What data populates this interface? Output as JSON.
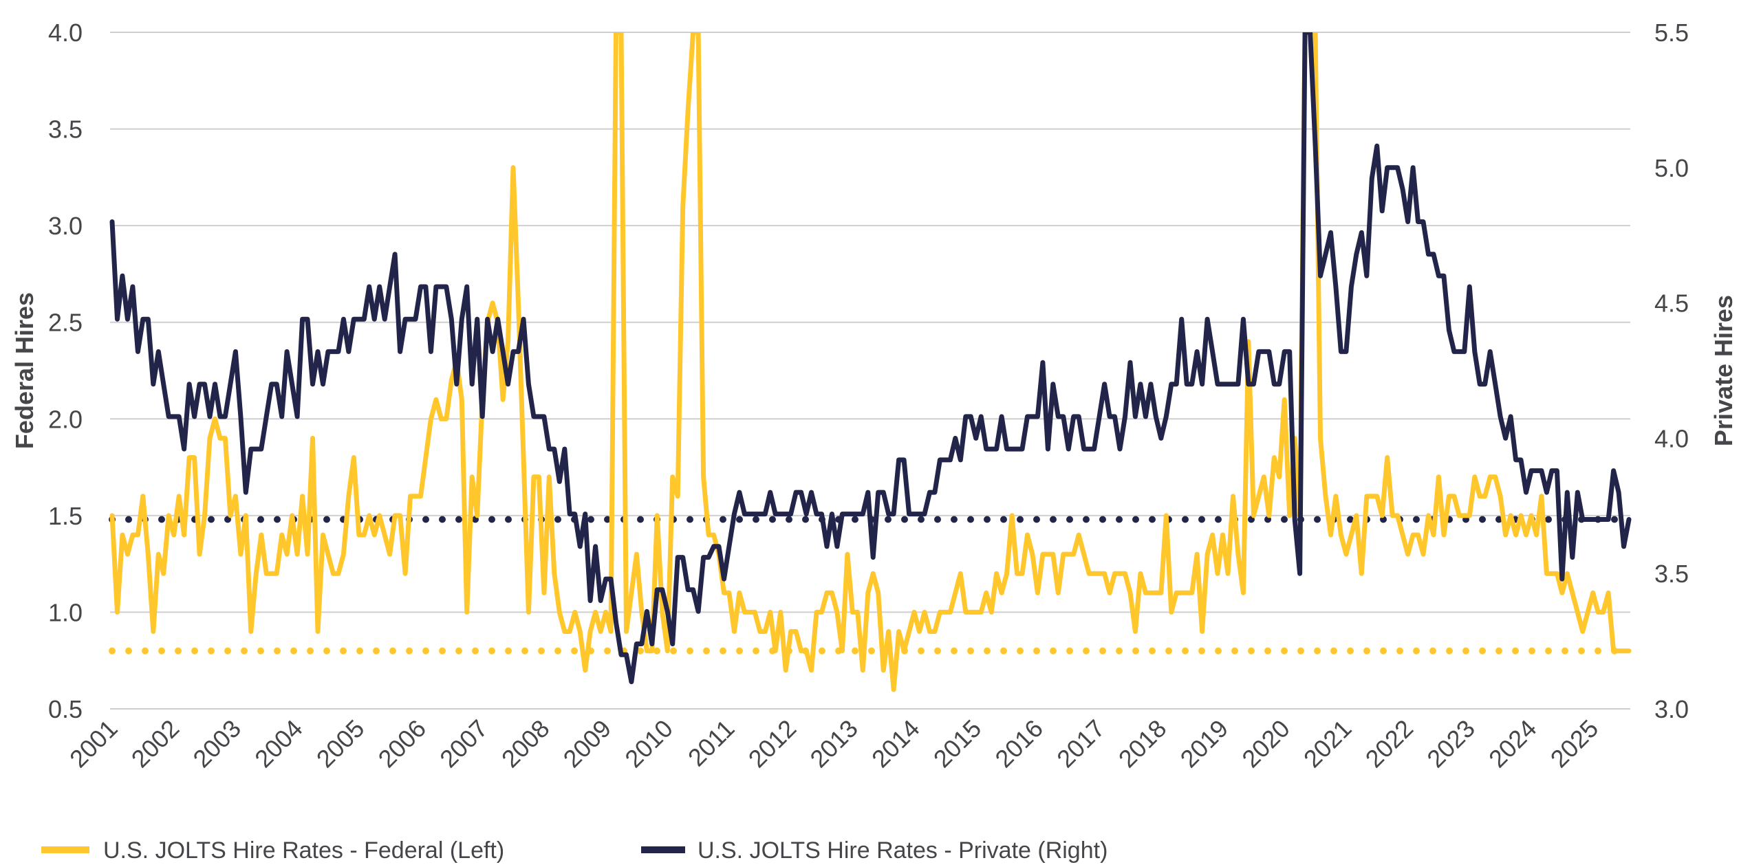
{
  "chart_data": {
    "type": "line",
    "title": "",
    "xlabel": "",
    "ylabel_left": "Federal Hires",
    "ylabel_right": "Private Hires",
    "ylim_left": [
      0.5,
      4.0
    ],
    "ylim_right": [
      3.0,
      5.5
    ],
    "yticks_left": [
      "0.5",
      "1.0",
      "1.5",
      "2.0",
      "2.5",
      "3.0",
      "3.5",
      "4.0"
    ],
    "yticks_right": [
      "3.0",
      "3.5",
      "4.0",
      "4.5",
      "5.0",
      "5.5"
    ],
    "xticks": [
      "2001",
      "2002",
      "2003",
      "2004",
      "2005",
      "2006",
      "2007",
      "2008",
      "2009",
      "2010",
      "2011",
      "2012",
      "2013",
      "2014",
      "2015",
      "2016",
      "2017",
      "2018",
      "2019",
      "2020",
      "2021",
      "2022",
      "2023",
      "2024",
      "2025"
    ],
    "x_start": "2001-01",
    "x_end": "2025-08",
    "frequency": "monthly",
    "grid": true,
    "legend_position": "bottom-left",
    "colors": {
      "federal": "#FFC72C",
      "private": "#22244A",
      "grid": "#CFCFCF",
      "text": "#45454A"
    },
    "reference_lines": [
      {
        "name": "Federal reference",
        "axis": "left",
        "value": 0.8,
        "style": "dotted",
        "color": "#FFC72C"
      },
      {
        "name": "Private reference",
        "axis": "right",
        "value": 3.7,
        "style": "dotted",
        "color": "#22244A"
      }
    ],
    "series": [
      {
        "name": "U.S. JOLTS Hire Rates - Federal (Left)",
        "axis": "left",
        "color": "#FFC72C",
        "values": [
          1.5,
          1.0,
          1.4,
          1.3,
          1.4,
          1.4,
          1.6,
          1.3,
          0.9,
          1.3,
          1.2,
          1.5,
          1.4,
          1.6,
          1.4,
          1.8,
          1.8,
          1.3,
          1.5,
          1.9,
          2.0,
          1.9,
          1.9,
          1.5,
          1.6,
          1.3,
          1.5,
          0.9,
          1.2,
          1.4,
          1.2,
          1.2,
          1.2,
          1.4,
          1.3,
          1.5,
          1.3,
          1.6,
          1.3,
          1.9,
          0.9,
          1.4,
          1.3,
          1.2,
          1.2,
          1.3,
          1.6,
          1.8,
          1.4,
          1.4,
          1.5,
          1.4,
          1.5,
          1.4,
          1.3,
          1.5,
          1.5,
          1.2,
          1.6,
          1.6,
          1.6,
          1.8,
          2.0,
          2.1,
          2.0,
          2.0,
          2.2,
          2.3,
          2.1,
          1.0,
          1.7,
          1.5,
          2.1,
          2.5,
          2.6,
          2.5,
          2.1,
          2.4,
          3.3,
          2.6,
          1.8,
          1.0,
          1.7,
          1.7,
          1.1,
          1.7,
          1.2,
          1.0,
          0.9,
          0.9,
          1.0,
          0.9,
          0.7,
          0.9,
          1.0,
          0.9,
          1.0,
          0.9,
          4.0,
          4.0,
          0.9,
          1.1,
          1.3,
          1.0,
          0.8,
          0.8,
          1.5,
          1.0,
          0.8,
          1.7,
          1.6,
          3.1,
          3.6,
          4.0,
          4.0,
          1.7,
          1.4,
          1.4,
          1.3,
          1.1,
          1.1,
          0.9,
          1.1,
          1.0,
          1.0,
          1.0,
          0.9,
          0.9,
          1.0,
          0.8,
          1.0,
          0.7,
          0.9,
          0.9,
          0.8,
          0.8,
          0.7,
          1.0,
          1.0,
          1.1,
          1.1,
          1.0,
          0.8,
          1.3,
          1.0,
          1.0,
          0.7,
          1.1,
          1.2,
          1.1,
          0.7,
          0.9,
          0.6,
          0.9,
          0.8,
          0.9,
          1.0,
          0.9,
          1.0,
          0.9,
          0.9,
          1.0,
          1.0,
          1.0,
          1.1,
          1.2,
          1.0,
          1.0,
          1.0,
          1.0,
          1.1,
          1.0,
          1.2,
          1.1,
          1.2,
          1.5,
          1.2,
          1.2,
          1.4,
          1.3,
          1.1,
          1.3,
          1.3,
          1.3,
          1.1,
          1.3,
          1.3,
          1.3,
          1.4,
          1.3,
          1.2,
          1.2,
          1.2,
          1.2,
          1.1,
          1.2,
          1.2,
          1.2,
          1.1,
          0.9,
          1.2,
          1.1,
          1.1,
          1.1,
          1.1,
          1.5,
          1.0,
          1.1,
          1.1,
          1.1,
          1.1,
          1.3,
          0.9,
          1.3,
          1.4,
          1.2,
          1.4,
          1.2,
          1.6,
          1.3,
          1.1,
          2.4,
          1.5,
          1.6,
          1.7,
          1.5,
          1.8,
          1.7,
          2.1,
          1.5,
          1.9,
          1.5,
          4.0,
          4.0,
          4.0,
          1.9,
          1.6,
          1.4,
          1.6,
          1.4,
          1.3,
          1.4,
          1.5,
          1.2,
          1.6,
          1.6,
          1.6,
          1.5,
          1.8,
          1.5,
          1.5,
          1.4,
          1.3,
          1.4,
          1.4,
          1.3,
          1.5,
          1.4,
          1.7,
          1.4,
          1.6,
          1.6,
          1.5,
          1.5,
          1.5,
          1.7,
          1.6,
          1.6,
          1.7,
          1.7,
          1.6,
          1.4,
          1.5,
          1.4,
          1.5,
          1.4,
          1.5,
          1.4,
          1.6,
          1.2,
          1.2,
          1.2,
          1.1,
          1.2,
          1.1,
          1.0,
          0.9,
          1.0,
          1.1,
          1.0,
          1.0,
          1.1,
          0.8,
          0.8,
          0.8,
          0.8
        ]
      },
      {
        "name": "U.S. JOLTS Hire Rates - Private (Right)",
        "axis": "right",
        "color": "#22244A",
        "values": [
          4.8,
          4.44,
          4.6,
          4.44,
          4.56,
          4.32,
          4.44,
          4.44,
          4.2,
          4.32,
          4.2,
          4.08,
          4.08,
          4.08,
          3.96,
          4.2,
          4.08,
          4.2,
          4.2,
          4.08,
          4.2,
          4.08,
          4.08,
          4.2,
          4.32,
          4.08,
          3.8,
          3.96,
          3.96,
          3.96,
          4.08,
          4.2,
          4.2,
          4.08,
          4.32,
          4.2,
          4.08,
          4.44,
          4.44,
          4.2,
          4.32,
          4.2,
          4.32,
          4.32,
          4.32,
          4.44,
          4.32,
          4.44,
          4.44,
          4.44,
          4.56,
          4.44,
          4.56,
          4.44,
          4.56,
          4.68,
          4.32,
          4.44,
          4.44,
          4.44,
          4.56,
          4.56,
          4.32,
          4.56,
          4.56,
          4.56,
          4.44,
          4.2,
          4.44,
          4.56,
          4.2,
          4.44,
          4.08,
          4.44,
          4.32,
          4.44,
          4.32,
          4.2,
          4.32,
          4.32,
          4.44,
          4.2,
          4.08,
          4.08,
          4.08,
          3.96,
          3.96,
          3.84,
          3.96,
          3.72,
          3.72,
          3.6,
          3.72,
          3.4,
          3.6,
          3.4,
          3.48,
          3.48,
          3.32,
          3.2,
          3.2,
          3.1,
          3.24,
          3.24,
          3.36,
          3.24,
          3.44,
          3.44,
          3.36,
          3.24,
          3.56,
          3.56,
          3.44,
          3.44,
          3.36,
          3.56,
          3.56,
          3.6,
          3.6,
          3.48,
          3.6,
          3.72,
          3.8,
          3.72,
          3.72,
          3.72,
          3.72,
          3.72,
          3.8,
          3.72,
          3.72,
          3.72,
          3.72,
          3.8,
          3.8,
          3.72,
          3.8,
          3.72,
          3.72,
          3.6,
          3.72,
          3.6,
          3.72,
          3.72,
          3.72,
          3.72,
          3.72,
          3.8,
          3.56,
          3.8,
          3.8,
          3.72,
          3.72,
          3.92,
          3.92,
          3.72,
          3.72,
          3.72,
          3.72,
          3.8,
          3.8,
          3.92,
          3.92,
          3.92,
          4.0,
          3.92,
          4.08,
          4.08,
          4.0,
          4.08,
          3.96,
          3.96,
          3.96,
          4.08,
          3.96,
          3.96,
          3.96,
          3.96,
          4.08,
          4.08,
          4.08,
          4.28,
          3.96,
          4.2,
          4.08,
          4.08,
          3.96,
          4.08,
          4.08,
          3.96,
          3.96,
          3.96,
          4.08,
          4.2,
          4.08,
          4.08,
          3.96,
          4.08,
          4.28,
          4.08,
          4.2,
          4.08,
          4.2,
          4.08,
          4.0,
          4.08,
          4.2,
          4.2,
          4.44,
          4.2,
          4.2,
          4.32,
          4.2,
          4.44,
          4.32,
          4.2,
          4.2,
          4.2,
          4.2,
          4.2,
          4.44,
          4.2,
          4.2,
          4.32,
          4.32,
          4.32,
          4.2,
          4.2,
          4.32,
          4.32,
          3.7,
          3.5,
          5.5,
          5.5,
          5.08,
          4.6,
          4.68,
          4.76,
          4.56,
          4.32,
          4.32,
          4.56,
          4.68,
          4.76,
          4.6,
          4.96,
          5.08,
          4.84,
          5.0,
          5.0,
          5.0,
          4.92,
          4.8,
          5.0,
          4.8,
          4.8,
          4.68,
          4.68,
          4.6,
          4.6,
          4.4,
          4.32,
          4.32,
          4.32,
          4.56,
          4.32,
          4.2,
          4.2,
          4.32,
          4.2,
          4.08,
          4.0,
          4.08,
          3.92,
          3.92,
          3.8,
          3.88,
          3.88,
          3.88,
          3.8,
          3.88,
          3.88,
          3.48,
          3.8,
          3.56,
          3.8,
          3.7,
          3.7,
          3.7,
          3.7,
          3.7,
          3.7,
          3.88,
          3.8,
          3.6,
          3.7
        ]
      }
    ]
  }
}
